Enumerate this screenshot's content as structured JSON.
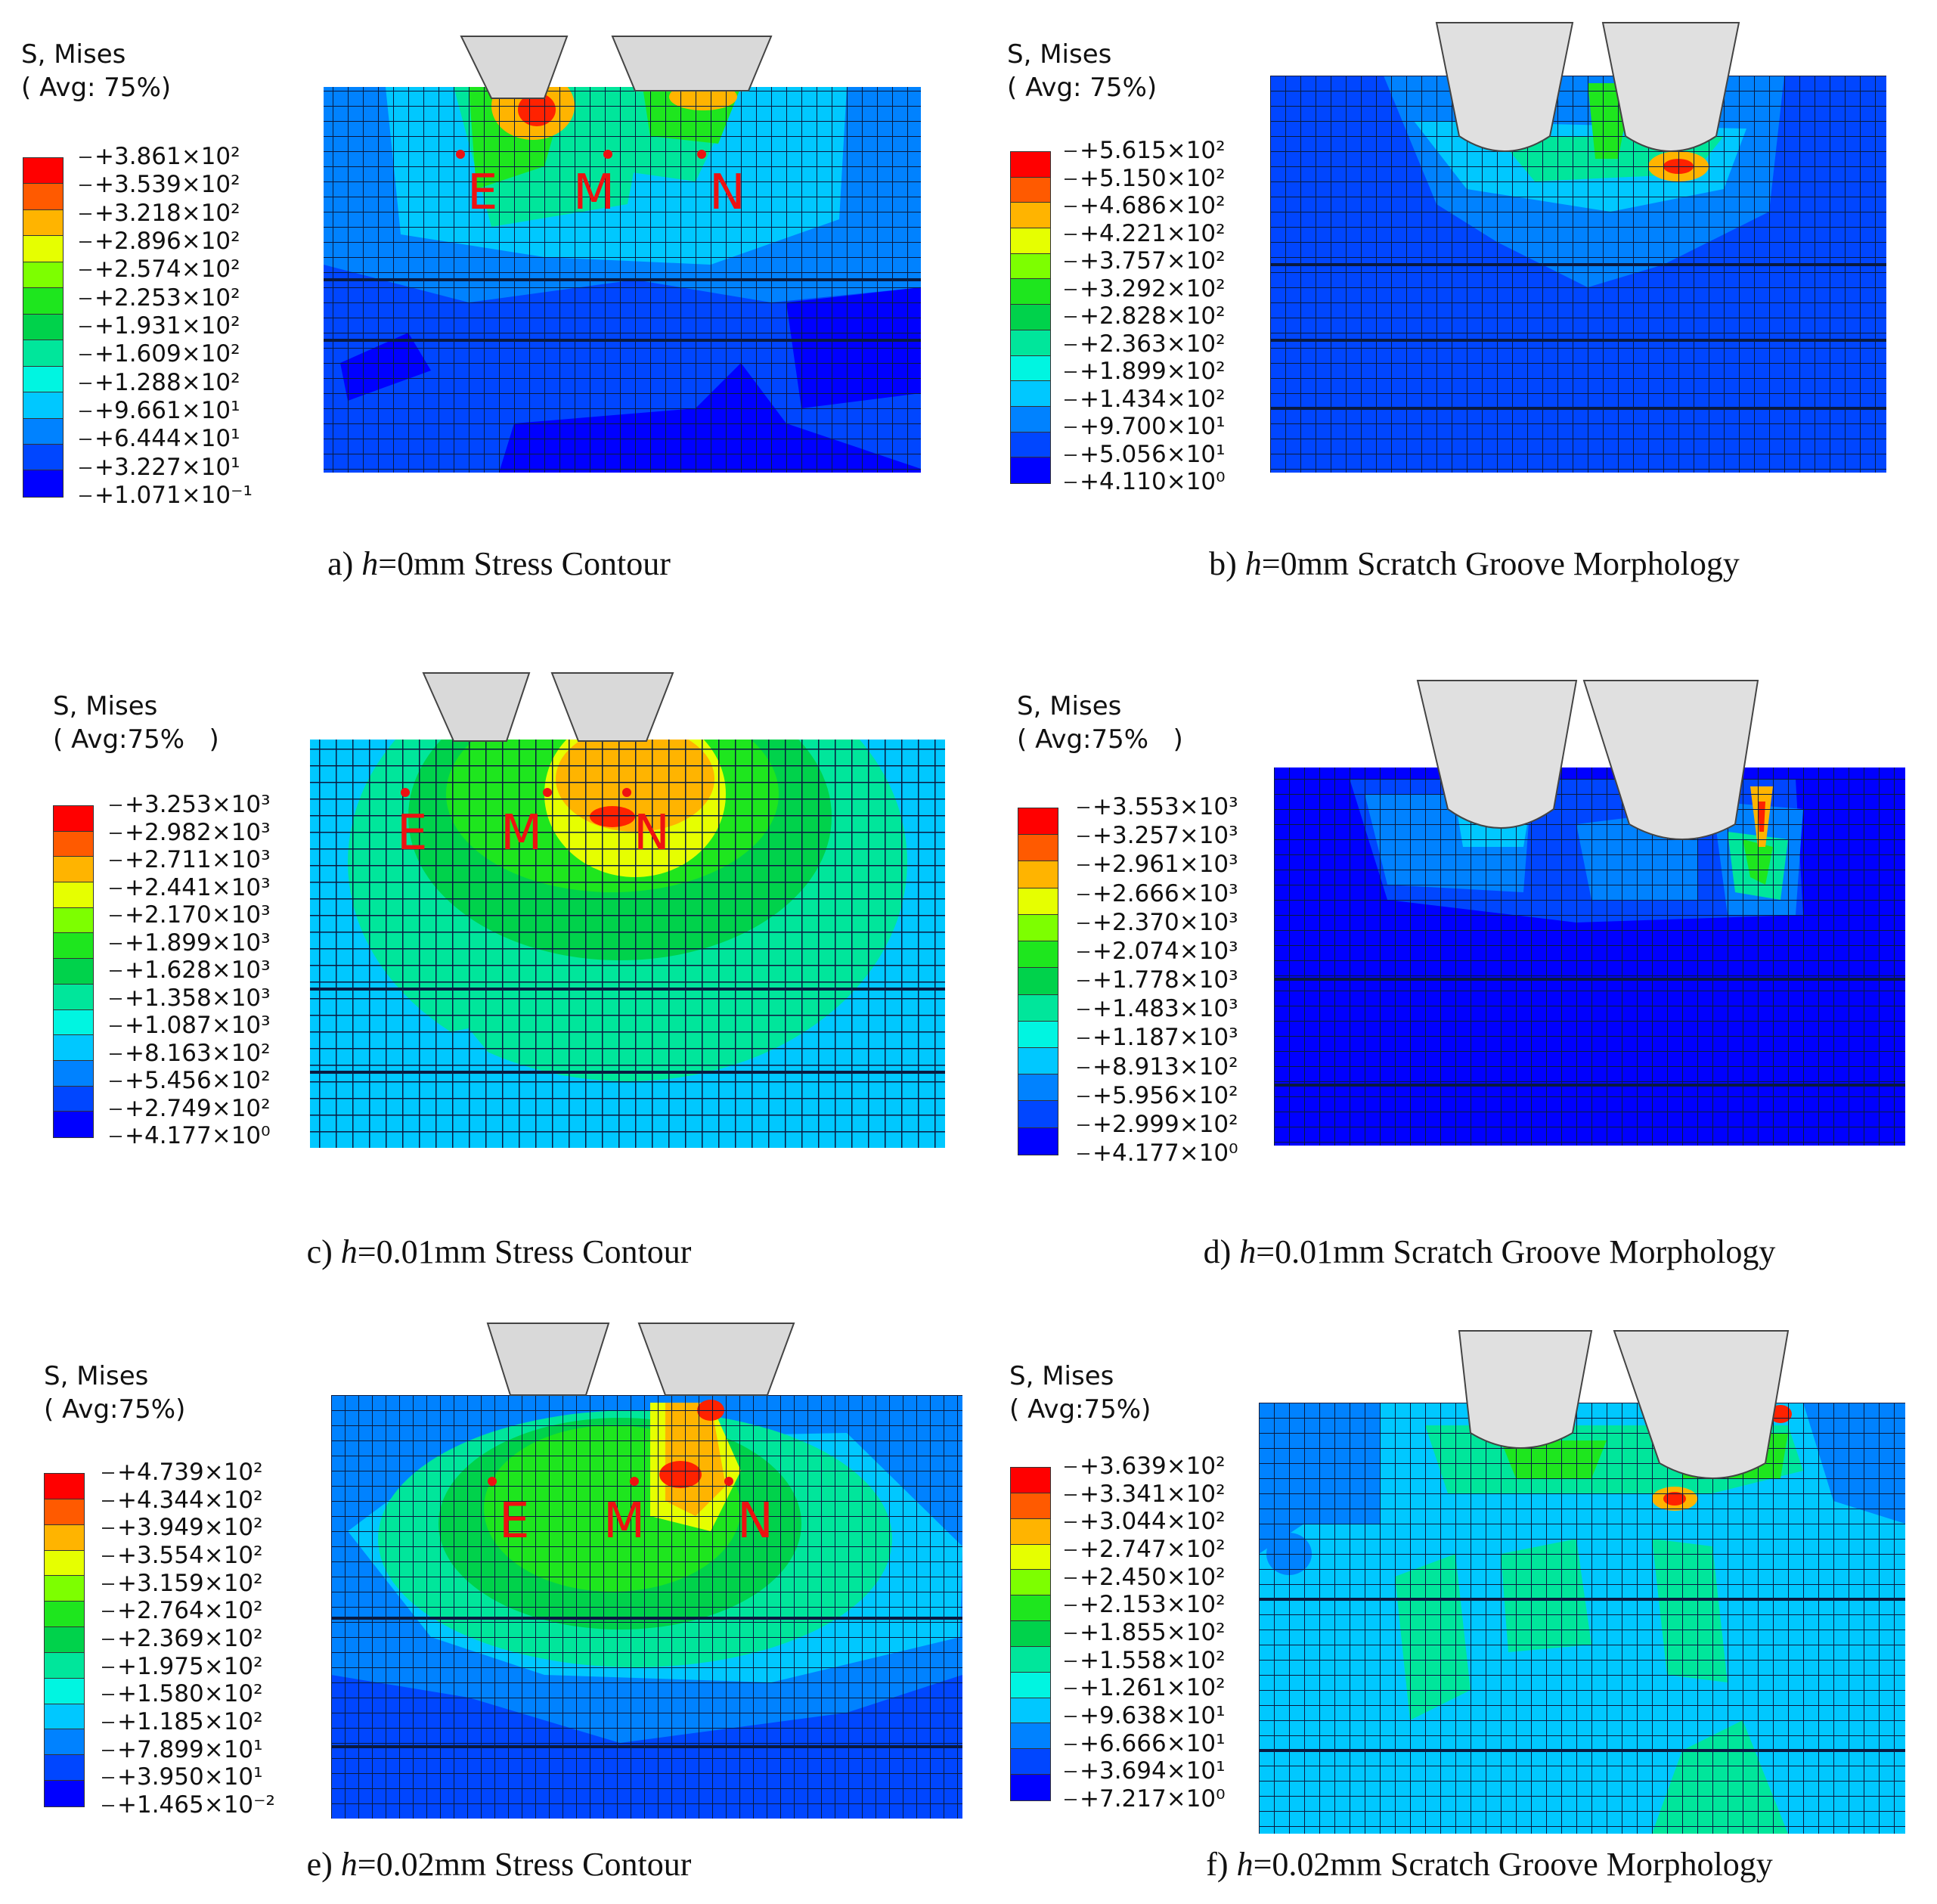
{
  "legend_title_line1": "S, Mises",
  "panels": [
    {
      "id": "a",
      "legend_title_line2": "( Avg: 75%)",
      "legend": [
        "+3.861×10²",
        "+3.539×10²",
        "+3.218×10²",
        "+2.896×10²",
        "+2.574×10²",
        "+2.253×10²",
        "+1.931×10²",
        "+1.609×10²",
        "+1.288×10²",
        "+9.661×10¹",
        "+6.444×10¹",
        "+3.227×10¹",
        "+1.071×10⁻¹"
      ],
      "caption_prefix": "a) ",
      "caption_var": "h",
      "caption_rest": "=0mm Stress Contour",
      "points": [
        "E",
        "M",
        "N"
      ]
    },
    {
      "id": "b",
      "legend_title_line2": "( Avg: 75%)",
      "legend": [
        "+5.615×10²",
        "+5.150×10²",
        "+4.686×10²",
        "+4.221×10²",
        "+3.757×10²",
        "+3.292×10²",
        "+2.828×10²",
        "+2.363×10²",
        "+1.899×10²",
        "+1.434×10²",
        "+9.700×10¹",
        "+5.056×10¹",
        "+4.110×10⁰"
      ],
      "caption_prefix": "b) ",
      "caption_var": "h",
      "caption_rest": "=0mm Scratch Groove Morphology"
    },
    {
      "id": "c",
      "legend_title_line2": "( Avg:75%   )",
      "legend": [
        "+3.253×10³",
        "+2.982×10³",
        "+2.711×10³",
        "+2.441×10³",
        "+2.170×10³",
        "+1.899×10³",
        "+1.628×10³",
        "+1.358×10³",
        "+1.087×10³",
        "+8.163×10²",
        "+5.456×10²",
        "+2.749×10²",
        "+4.177×10⁰"
      ],
      "caption_prefix": "c) ",
      "caption_var": "h",
      "caption_rest": "=0.01mm Stress Contour",
      "points": [
        "E",
        "M",
        "N"
      ]
    },
    {
      "id": "d",
      "legend_title_line2": "( Avg:75%   )",
      "legend": [
        "+3.553×10³",
        "+3.257×10³",
        "+2.961×10³",
        "+2.666×10³",
        "+2.370×10³",
        "+2.074×10³",
        "+1.778×10³",
        "+1.483×10³",
        "+1.187×10³",
        "+8.913×10²",
        "+5.956×10²",
        "+2.999×10²",
        "+4.177×10⁰"
      ],
      "caption_prefix": "d) ",
      "caption_var": "h",
      "caption_rest": "=0.01mm Scratch Groove Morphology"
    },
    {
      "id": "e",
      "legend_title_line2": "( Avg:75%)",
      "legend": [
        "+4.739×10²",
        "+4.344×10²",
        "+3.949×10²",
        "+3.554×10²",
        "+3.159×10²",
        "+2.764×10²",
        "+2.369×10²",
        "+1.975×10²",
        "+1.580×10²",
        "+1.185×10²",
        "+7.899×10¹",
        "+3.950×10¹",
        "+1.465×10⁻²"
      ],
      "caption_prefix": "e) ",
      "caption_var": "h",
      "caption_rest": "=0.02mm Stress Contour",
      "points": [
        "E",
        "M",
        "N"
      ]
    },
    {
      "id": "f",
      "legend_title_line2": "( Avg:75%)",
      "legend": [
        "+3.639×10²",
        "+3.341×10²",
        "+3.044×10²",
        "+2.747×10²",
        "+2.450×10²",
        "+2.153×10²",
        "+1.855×10²",
        "+1.558×10²",
        "+1.261×10²",
        "+9.638×10¹",
        "+6.666×10¹",
        "+3.694×10¹",
        "+7.217×10⁰"
      ],
      "caption_prefix": "f) ",
      "caption_var": "h",
      "caption_rest": "=0.02mm Scratch Groove Morphology"
    }
  ],
  "colormap": [
    "#ff0000",
    "#ff5a00",
    "#ffb400",
    "#e6ff00",
    "#7dff00",
    "#1ee61e",
    "#00d24b",
    "#00e69b",
    "#00f5e1",
    "#00c8ff",
    "#0082ff",
    "#0046ff",
    "#0000ff"
  ]
}
